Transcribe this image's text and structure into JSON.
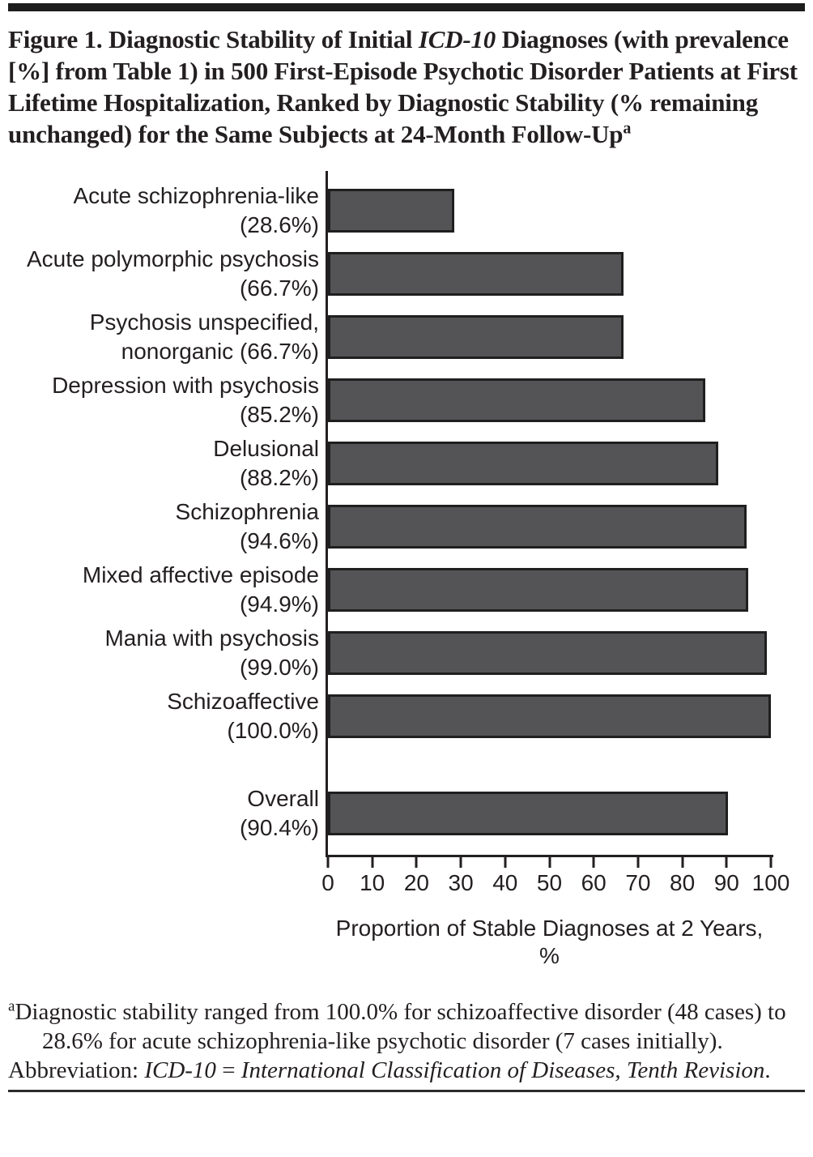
{
  "figure": {
    "title": {
      "prefix": "Figure 1. Diagnostic Stability of Initial ",
      "italic_term": "ICD-10",
      "suffix": " Diagnoses (with prevalence [%] from Table 1) in 500 First-Episode Psychotic Disorder Patients at First Lifetime Hospitalization, Ranked by Diagnostic Stability (% remaining unchanged) for the Same Subjects at 24-Month Follow-Up",
      "superscript": "a"
    },
    "footnote": {
      "superscript": "a",
      "text": "Diagnostic stability ranged from 100.0% for schizoaffective disorder (48 cases) to 28.6% for acute schizophrenia-like psychotic disorder (7 cases initially)."
    },
    "abbreviation": {
      "label": "Abbreviation: ",
      "term_italic": "ICD-10",
      "equals_sign": " = ",
      "definition_italic": "International Classification of Diseases, Tenth Revision",
      "period": "."
    }
  },
  "chart_data": {
    "type": "bar",
    "orientation": "horizontal",
    "title": "",
    "xlabel": "Proportion of Stable Diagnoses at 2 Years, %",
    "ylabel": "",
    "xlim": [
      0,
      100
    ],
    "xticks": [
      0,
      10,
      20,
      30,
      40,
      50,
      60,
      70,
      80,
      90,
      100
    ],
    "grid": false,
    "legend": false,
    "bar_color": "#545456",
    "bar_border_color": "#1f1f1f",
    "axis_color": "#231f20",
    "categories": [
      "Acute schizophrenia-like",
      "Acute polymorphic psychosis",
      "Psychosis unspecified, nonorganic",
      "Depression with psychosis",
      "Delusional",
      "Schizophrenia",
      "Mixed affective episode",
      "Mania with psychosis",
      "Schizoaffective",
      "Overall"
    ],
    "values": [
      28.6,
      66.7,
      66.7,
      85.2,
      88.2,
      94.6,
      94.9,
      99.0,
      100.0,
      90.4
    ],
    "bars": [
      {
        "category": "Acute schizophrenia-like",
        "label_lines": [
          "Acute schizophrenia-like",
          "(28.6%)"
        ],
        "value": 28.6,
        "separated_before": false
      },
      {
        "category": "Acute polymorphic psychosis",
        "label_lines": [
          "Acute polymorphic psychosis",
          "(66.7%)"
        ],
        "value": 66.7,
        "separated_before": false
      },
      {
        "category": "Psychosis unspecified, nonorganic",
        "label_lines": [
          "Psychosis unspecified,",
          "nonorganic (66.7%)"
        ],
        "value": 66.7,
        "separated_before": false
      },
      {
        "category": "Depression with psychosis",
        "label_lines": [
          "Depression with psychosis",
          "(85.2%)"
        ],
        "value": 85.2,
        "separated_before": false
      },
      {
        "category": "Delusional",
        "label_lines": [
          "Delusional",
          "(88.2%)"
        ],
        "value": 88.2,
        "separated_before": false
      },
      {
        "category": "Schizophrenia",
        "label_lines": [
          "Schizophrenia",
          "(94.6%)"
        ],
        "value": 94.6,
        "separated_before": false
      },
      {
        "category": "Mixed affective episode",
        "label_lines": [
          "Mixed affective episode",
          "(94.9%)"
        ],
        "value": 94.9,
        "separated_before": false
      },
      {
        "category": "Mania with psychosis",
        "label_lines": [
          "Mania with psychosis",
          "(99.0%)"
        ],
        "value": 99.0,
        "separated_before": false
      },
      {
        "category": "Schizoaffective",
        "label_lines": [
          "Schizoaffective",
          "(100.0%)"
        ],
        "value": 100.0,
        "separated_before": false
      },
      {
        "category": "Overall",
        "label_lines": [
          "Overall",
          "(90.4%)"
        ],
        "value": 90.4,
        "separated_before": true
      }
    ]
  }
}
